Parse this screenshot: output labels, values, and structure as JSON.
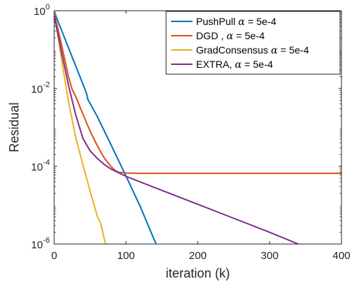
{
  "chart_data": {
    "type": "line",
    "xlabel": "iteration (k)",
    "ylabel": "Residual",
    "xlim": [
      0,
      400
    ],
    "ylim": [
      1e-06,
      1
    ],
    "yscale": "log",
    "grid": false,
    "legend_position": "top-right",
    "x_ticks": [
      "0",
      "100",
      "200",
      "300",
      "400"
    ],
    "y_ticks": [
      {
        "base": "10",
        "exp": "-6",
        "value": 1e-06
      },
      {
        "base": "10",
        "exp": "-4",
        "value": 0.0001
      },
      {
        "base": "10",
        "exp": "-2",
        "value": 0.01
      },
      {
        "base": "10",
        "exp": "0",
        "value": 1
      }
    ],
    "series": [
      {
        "name": "PushPull",
        "alpha_text": "= 5e-4",
        "color": "#0072BD",
        "x": [
          0,
          20,
          40,
          45,
          47,
          60,
          80,
          100,
          120,
          140,
          142
        ],
        "y": [
          0.95,
          0.11,
          0.013,
          0.0075,
          0.0052,
          0.0019,
          0.00033,
          5.6e-05,
          9.1e-06,
          1.2e-06,
          1e-06
        ]
      },
      {
        "name": "DGD ,",
        "alpha_text": "= 5e-4",
        "color": "#D95319",
        "x": [
          0,
          10,
          20,
          25,
          30,
          40,
          50,
          60,
          70,
          80,
          85,
          90,
          100,
          120,
          200,
          300,
          400
        ],
        "y": [
          0.9,
          0.14,
          0.02,
          0.0095,
          0.0062,
          0.0022,
          0.0008,
          0.00034,
          0.00016,
          9.5e-05,
          7.8e-05,
          7e-05,
          6.7e-05,
          6.6e-05,
          6.6e-05,
          6.6e-05,
          6.6e-05
        ]
      },
      {
        "name": "GradConsensus",
        "alpha_text": "= 5e-4",
        "color": "#EDB120",
        "x": [
          0,
          10,
          20,
          30,
          40,
          50,
          60,
          65,
          70,
          72
        ],
        "y": [
          0.95,
          0.06,
          0.0045,
          0.00055,
          0.00011,
          2.3e-05,
          5.2e-06,
          3.3e-06,
          1.3e-06,
          1e-06
        ]
      },
      {
        "name": "EXTRA,",
        "alpha_text": "= 5e-4",
        "color": "#7E2F8E",
        "x": [
          0,
          10,
          20,
          30,
          40,
          50,
          60,
          70,
          80,
          100,
          150,
          200,
          250,
          300,
          340
        ],
        "y": [
          0.75,
          0.09,
          0.012,
          0.0021,
          0.00052,
          0.00025,
          0.00016,
          0.00011,
          8.3e-05,
          5.5e-05,
          2.4e-05,
          1.05e-05,
          4.6e-06,
          2e-06,
          1e-06
        ]
      }
    ]
  }
}
